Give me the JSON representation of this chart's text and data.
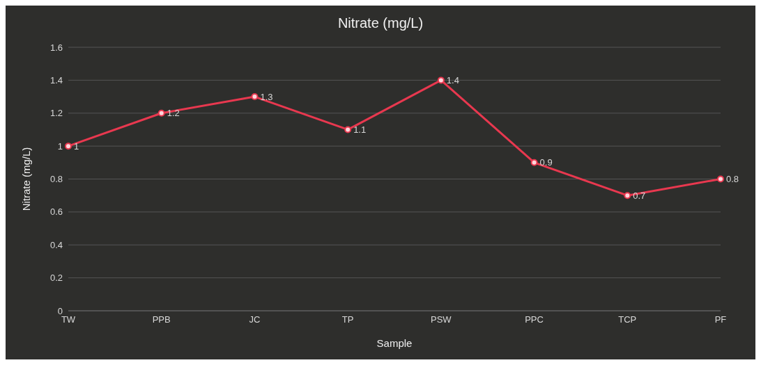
{
  "chart_data": {
    "type": "line",
    "title": "Nitrate (mg/L)",
    "xlabel": "Sample",
    "ylabel": "Nitrate (mg/L)",
    "categories": [
      "TW",
      "PPB",
      "JC",
      "TP",
      "PSW",
      "PPC",
      "TCP",
      "PF"
    ],
    "series": [
      {
        "color": "#e8384f",
        "values": [
          1,
          1.2,
          1.3,
          1.1,
          1.4,
          0.9,
          0.7,
          0.8
        ]
      }
    ],
    "ylim": [
      0,
      1.6
    ],
    "yticks": [
      0,
      0.2,
      0.4,
      0.6,
      0.8,
      1,
      1.2,
      1.4,
      1.6
    ],
    "grid": "y",
    "legend": false,
    "marker": "circle",
    "line_style": "solid",
    "data_labels": true
  }
}
